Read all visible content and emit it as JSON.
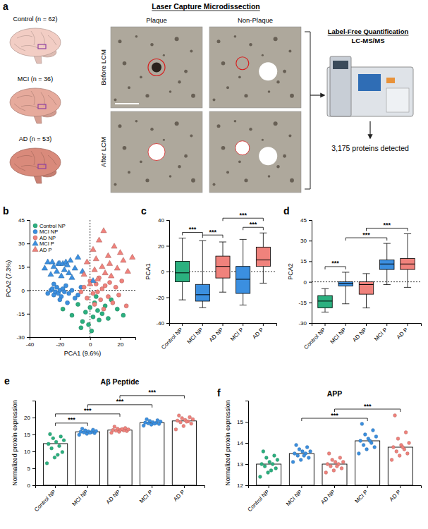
{
  "diagram": {
    "panel_label": "a",
    "title": "Laser Capture Microdissection",
    "groups": [
      "Control (n = 62)",
      "MCI (n = 36)",
      "AD (n = 53)"
    ],
    "columns": [
      "Plaque",
      "Non-Plaque"
    ],
    "rows": [
      "Before LCM",
      "After LCM"
    ],
    "method": [
      "Label-Free Quantification",
      "LC-MS/MS"
    ],
    "result": "3,175 proteins detected"
  },
  "chart_data": [
    {
      "type": "scatter",
      "panel_label": "b",
      "xlabel": "PCA1 (9.6%)",
      "ylabel": "PCA2 (7.3%)",
      "xlim": [
        -40,
        30
      ],
      "xticks": [
        -40,
        -20,
        0,
        20
      ],
      "ylim": [
        -30,
        45
      ],
      "yticks": [
        -30,
        -15,
        0,
        15,
        30,
        45
      ],
      "legend": "top-left",
      "v_line": 0,
      "h_line": 0,
      "series": [
        {
          "name": "Control NP",
          "color": "#2bb07f",
          "marker": "circle",
          "x": [
            -18,
            -12,
            -8,
            -5,
            -3,
            -1,
            0,
            2,
            3,
            5,
            6,
            8,
            10,
            12,
            14,
            -6,
            1,
            4,
            18,
            22
          ],
          "y": [
            -12,
            -16,
            -9,
            -20,
            -14,
            -22,
            -11,
            -17,
            -8,
            -13,
            -19,
            -15,
            -10,
            -18,
            -6,
            -24,
            -26,
            -4,
            -12,
            -16
          ]
        },
        {
          "name": "MCI NP",
          "color": "#3b8fe0",
          "marker": "circle",
          "x": [
            -28,
            -26,
            -25,
            -24,
            -23,
            -22,
            -21,
            -20,
            -19,
            -18,
            -17,
            -16,
            -14,
            -12,
            -10,
            -8,
            -24,
            -20,
            -15,
            -6
          ],
          "y": [
            -2,
            0,
            1,
            -3,
            -1,
            2,
            -2,
            0,
            -4,
            1,
            -1,
            3,
            -2,
            0,
            -5,
            -3,
            4,
            -6,
            -8,
            2
          ]
        },
        {
          "name": "AD NP",
          "color": "#f0827c",
          "marker": "circle",
          "x": [
            -4,
            -2,
            0,
            2,
            3,
            4,
            5,
            6,
            7,
            8,
            9,
            10,
            12,
            13,
            15,
            17,
            19,
            21,
            24,
            -6
          ],
          "y": [
            2,
            -5,
            6,
            -2,
            -9,
            4,
            -1,
            8,
            -6,
            1,
            -12,
            3,
            -4,
            5,
            -8,
            2,
            -3,
            6,
            -10,
            -1
          ]
        },
        {
          "name": "MCI P",
          "color": "#3b8fe0",
          "marker": "triangle",
          "x": [
            -30,
            -28,
            -26,
            -25,
            -24,
            -22,
            -21,
            -20,
            -19,
            -18,
            -17,
            -16,
            -15,
            -14,
            -13,
            -12,
            -10,
            -8,
            -5,
            2
          ],
          "y": [
            14,
            18,
            10,
            18,
            15,
            12,
            17,
            17,
            9,
            17,
            13,
            18,
            16,
            11,
            19,
            8,
            14,
            21,
            12,
            6
          ]
        },
        {
          "name": "AD P",
          "color": "#f0827c",
          "marker": "triangle",
          "x": [
            -4,
            -2,
            0,
            2,
            3,
            4,
            5,
            6,
            8,
            9,
            10,
            12,
            13,
            14,
            16,
            18,
            20,
            22,
            25,
            28
          ],
          "y": [
            10,
            18,
            4,
            26,
            13,
            20,
            7,
            32,
            15,
            38,
            11,
            22,
            17,
            9,
            28,
            14,
            24,
            19,
            12,
            21
          ]
        }
      ]
    },
    {
      "type": "box",
      "panel_label": "c",
      "ylabel": "PCA1",
      "categories": [
        "Control NP",
        "MCI NP",
        "AD NP",
        "MCI P",
        "AD P"
      ],
      "colors": [
        "#2bb07f",
        "#3b8fe0",
        "#f0827c",
        "#3b8fe0",
        "#f0827c"
      ],
      "ylim": [
        -40,
        40
      ],
      "yticks": [
        -40,
        -20,
        0,
        20,
        40
      ],
      "h_line": 0,
      "boxes": [
        {
          "min": -22,
          "q1": -8,
          "median": -1,
          "q3": 8,
          "max": 26
        },
        {
          "min": -28,
          "q1": -23,
          "median": -18,
          "q3": -10,
          "max": 24
        },
        {
          "min": -16,
          "q1": -5,
          "median": 4,
          "q3": 12,
          "max": 23
        },
        {
          "min": -26,
          "q1": -17,
          "median": -6,
          "q3": 4,
          "max": 25
        },
        {
          "min": -9,
          "q1": 4,
          "median": 9,
          "q3": 19,
          "max": 30
        }
      ],
      "comparisons": [
        {
          "from": 0,
          "to": 1,
          "label": "***"
        },
        {
          "from": 1,
          "to": 2,
          "label": "***"
        },
        {
          "from": 2,
          "to": 4,
          "label": "***"
        },
        {
          "from": 3,
          "to": 4,
          "label": "***"
        }
      ]
    },
    {
      "type": "box",
      "panel_label": "d",
      "ylabel": "PCA2",
      "categories": [
        "Control NP",
        "MCI NP",
        "AD NP",
        "MCI P",
        "AD P"
      ],
      "colors": [
        "#2bb07f",
        "#3b8fe0",
        "#f0827c",
        "#3b8fe0",
        "#f0827c"
      ],
      "ylim": [
        -30,
        45
      ],
      "yticks": [
        -30,
        -15,
        0,
        15,
        30,
        45
      ],
      "h_line": 0,
      "boxes": [
        {
          "min": -22,
          "q1": -19,
          "median": -14,
          "q3": -10,
          "max": -5
        },
        {
          "min": -16,
          "q1": -3,
          "median": -1,
          "q3": 0,
          "max": 7
        },
        {
          "min": -19,
          "q1": -9,
          "median": -2,
          "q3": 0,
          "max": 6
        },
        {
          "min": -2,
          "q1": 9,
          "median": 13,
          "q3": 16,
          "max": 28
        },
        {
          "min": -4,
          "q1": 9,
          "median": 13,
          "q3": 17,
          "max": 35
        }
      ],
      "comparisons": [
        {
          "from": 0,
          "to": 1,
          "label": "***"
        },
        {
          "from": 1,
          "to": 3,
          "label": "***"
        },
        {
          "from": 2,
          "to": 4,
          "label": "***"
        }
      ]
    },
    {
      "type": "bar",
      "panel_label": "e",
      "title": "Aβ Peptide",
      "ylabel": "Normalized protein expression",
      "categories": [
        "Control NP",
        "MCI NP",
        "AD NP",
        "MCI P",
        "AD P"
      ],
      "colors": [
        "#2bb07f",
        "#3b8fe0",
        "#f0827c",
        "#3b8fe0",
        "#f0827c"
      ],
      "ylim": [
        0,
        25
      ],
      "yticks": [
        0,
        5,
        10,
        15,
        20
      ],
      "values": [
        12.3,
        15.8,
        16.3,
        18.5,
        19.0
      ],
      "points": [
        [
          6.5,
          8.2,
          9.8,
          10.9,
          11.6,
          12.2,
          12.8,
          13.3,
          13.9,
          14.4,
          15.1,
          9.0
        ],
        [
          14.9,
          15.2,
          15.4,
          15.6,
          15.7,
          15.8,
          15.9,
          16.0,
          16.2,
          16.4,
          16.7,
          15.5
        ],
        [
          15.5,
          15.8,
          16.0,
          16.1,
          16.2,
          16.3,
          16.4,
          16.5,
          16.7,
          16.9,
          17.3,
          16.6
        ],
        [
          17.6,
          17.9,
          18.1,
          18.3,
          18.4,
          18.5,
          18.6,
          18.8,
          19.0,
          19.2,
          19.5,
          18.2
        ],
        [
          16.5,
          17.5,
          18.2,
          18.6,
          18.9,
          19.1,
          19.3,
          19.5,
          19.8,
          20.1,
          20.6,
          18.8
        ]
      ],
      "comparisons": [
        {
          "from": 0,
          "to": 1,
          "label": "***"
        },
        {
          "from": 0,
          "to": 2,
          "label": "***"
        },
        {
          "from": 1,
          "to": 3,
          "label": "***"
        },
        {
          "from": 2,
          "to": 4,
          "label": "***"
        }
      ]
    },
    {
      "type": "bar",
      "panel_label": "f",
      "title": "APP",
      "ylabel": "Normalized protein expression",
      "categories": [
        "Control NP",
        "MCI NP",
        "AD NP",
        "MCI P",
        "AD P"
      ],
      "colors": [
        "#2bb07f",
        "#3b8fe0",
        "#f0827c",
        "#3b8fe0",
        "#f0827c"
      ],
      "ylim": [
        12,
        16
      ],
      "yticks": [
        12,
        13,
        14,
        15
      ],
      "values": [
        13.0,
        13.5,
        13.0,
        14.1,
        13.8
      ],
      "points": [
        [
          12.4,
          12.6,
          12.8,
          12.9,
          13.0,
          13.0,
          13.1,
          13.2,
          13.3,
          13.4,
          13.6,
          12.7
        ],
        [
          13.1,
          13.2,
          13.3,
          13.4,
          13.5,
          13.5,
          13.6,
          13.6,
          13.7,
          13.8,
          13.9,
          13.4
        ],
        [
          12.6,
          12.7,
          12.8,
          12.9,
          13.0,
          13.0,
          13.1,
          13.1,
          13.2,
          13.3,
          13.5,
          12.9
        ],
        [
          13.5,
          13.7,
          13.8,
          13.9,
          14.0,
          14.1,
          14.2,
          14.3,
          14.4,
          14.6,
          14.9,
          14.1
        ],
        [
          13.2,
          13.4,
          13.5,
          13.6,
          13.7,
          13.8,
          13.9,
          14.0,
          14.2,
          14.5,
          15.3,
          13.8
        ]
      ],
      "comparisons": [
        {
          "from": 1,
          "to": 3,
          "label": "***"
        },
        {
          "from": 2,
          "to": 4,
          "label": "***"
        }
      ]
    }
  ]
}
